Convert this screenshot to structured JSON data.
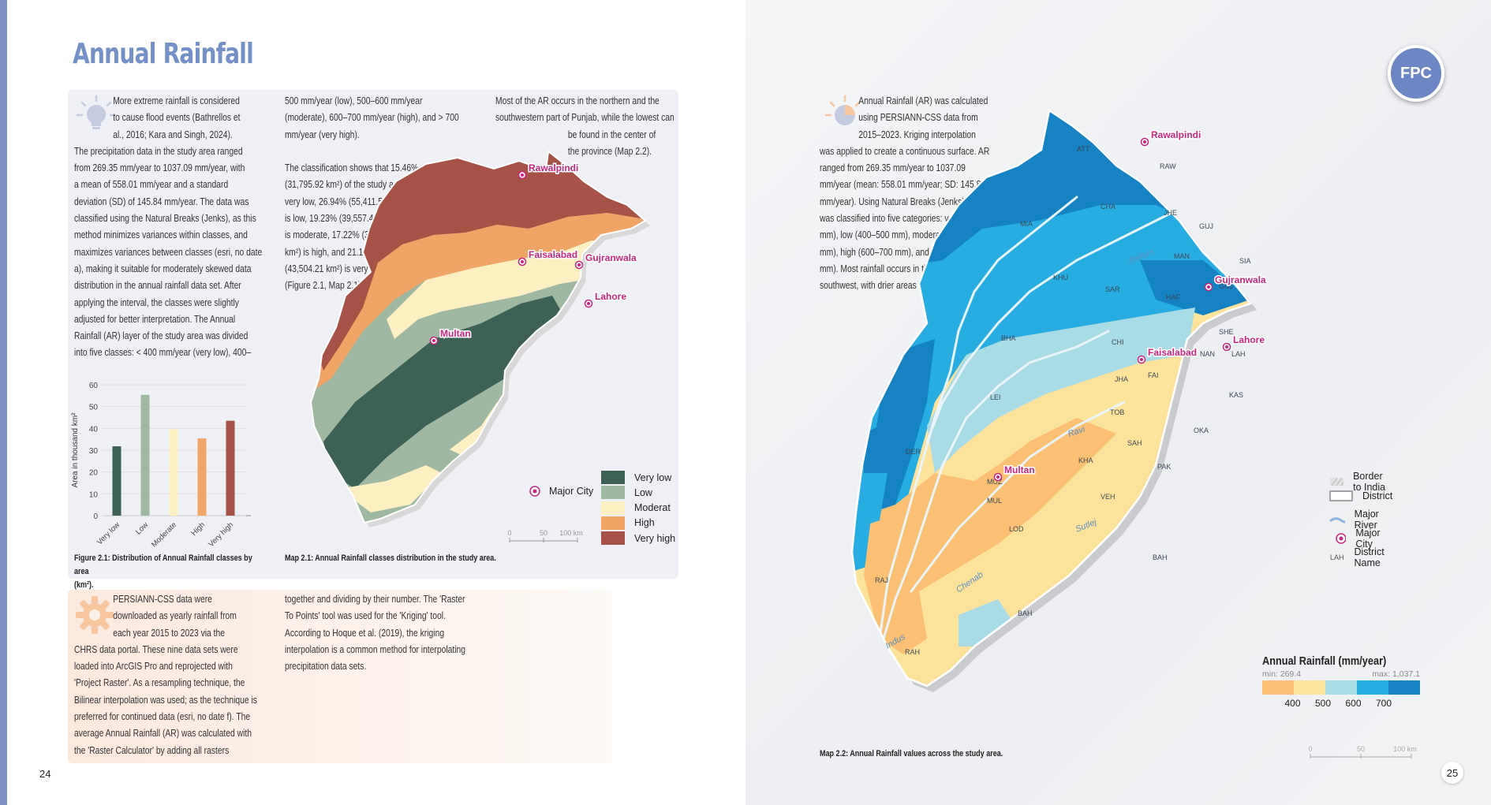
{
  "title": "Annual Rainfall",
  "badge": "FPC",
  "page_left": "24",
  "page_right": "25",
  "left_col1_text": [
    "More extreme rainfall is considered",
    "to cause flood events (Bathrellos et",
    "al., 2016; Kara and Singh, 2024).",
    "The precipitation data in the study area ranged",
    "from 269.35 mm/year to 1037.09 mm/year, with",
    "a mean of 558.01 mm/year and a standard",
    "deviation (SD) of 145.84 mm/year. The data was",
    "classified using the Natural Breaks (Jenks), as this",
    "method minimizes variances within classes, and",
    "maximizes variances between classes (esri, no date",
    "a), making it suitable for moderately skewed data",
    "distribution in the annual rainfall data set. After",
    "applying the interval, the classes were slightly",
    "adjusted for better interpretation. The Annual",
    "Rainfall (AR) layer of the study area was divided",
    "into five classes: < 400 mm/year (very low), 400–"
  ],
  "left_col2_text": [
    "500 mm/year (low), 500–600 mm/year",
    "(moderate), 600–700 mm/year (high), and > 700",
    "mm/year (very high).",
    "",
    "The classification shows that 15.46%",
    "(31,795.92 km²) of the study area falls",
    "very low, 26.94% (55,411.50 km²)",
    "is low, 19.23% (39,557.46 km²)",
    "is moderate, 17.22% (35,427.93",
    "km²) is high, and 21.15%",
    "(43,504.21 km²) is very high",
    "(Figure 2.1, Map 2.1)."
  ],
  "left_col3_text": [
    "Most of the AR occurs in the northern and the",
    "southwestern part of Punjab, while the lowest can",
    "be found in the center of",
    "the province (Map 2.2)."
  ],
  "orange_col1_text": [
    "PERSIANN-CSS data were",
    "downloaded as yearly rainfall from",
    "each year 2015 to 2023 via the",
    "CHRS data portal. These nine data sets were",
    "loaded into ArcGIS Pro and reprojected with",
    "'Project Raster'. As a resampling technique, the",
    "Bilinear interpolation was used; as the technique is",
    "preferred for continued data (esri, no date f). The",
    "average Annual Rainfall (AR) was calculated with",
    "the 'Raster Calculator' by adding all rasters"
  ],
  "orange_col2_text": [
    "together and dividing by their number. The 'Raster",
    "To Points' tool was used for the 'Kriging' tool.",
    "According to Hoque et al. (2019), the kriging",
    "interpolation is a common method for interpolating",
    "precipitation data sets."
  ],
  "right_text": [
    "Annual Rainfall (AR) was calculated",
    "using PERSIANN-CSS data from",
    "2015–2023. Kriging interpolation",
    "was applied to create a continuous surface. AR",
    "ranged from 269.35 mm/year to 1037.09",
    "mm/year (mean: 558.01 mm/year; SD: 145.84",
    "mm/year). Using Natural Breaks (Jenks), the data",
    "was classified into five categories: very low (< 400",
    "mm), low (400–500 mm), moderate (500–600",
    "mm), high (600–700 mm), and very high (> 700",
    "mm). Most rainfall occurs in the north and",
    "southwest, with drier areas in the center of Punjab."
  ],
  "fig1_caption": [
    "Figure 2.1: Distribution of Annual Rainfall classes by area",
    "(km²)."
  ],
  "map1_caption": "Map 2.1: Annual Rainfall classes distribution in the study area.",
  "map2_caption": "Map 2.2: Annual Rainfall values across the study area.",
  "chart_data": {
    "type": "bar",
    "categories": [
      "Very low",
      "Low",
      "Moderate",
      "High",
      "Very high"
    ],
    "values": [
      31.8,
      55.4,
      39.6,
      35.4,
      43.5
    ],
    "colors": [
      "#3d6155",
      "#9fb8a2",
      "#fcefc2",
      "#f0a466",
      "#a75247"
    ],
    "ylabel": "Area in thousand km²",
    "ylim": [
      0,
      60
    ],
    "yticks": [
      0,
      10,
      20,
      30,
      40,
      50,
      60
    ],
    "grid": false
  },
  "map1": {
    "cities": [
      "Rawalpindi",
      "Gujranwala",
      "Faisalabad",
      "Lahore",
      "Multan"
    ],
    "legend_city": "Major City",
    "legend": [
      {
        "label": "Very low",
        "color": "#3d6155"
      },
      {
        "label": "Low",
        "color": "#9fb8a2"
      },
      {
        "label": "Moderat",
        "color": "#fcefc2"
      },
      {
        "label": "High",
        "color": "#f0a466"
      },
      {
        "label": "Very high",
        "color": "#a75247"
      }
    ],
    "scale": [
      "0",
      "50",
      "100 km"
    ]
  },
  "map2": {
    "cities": [
      "Rawalpindi",
      "Gujranwala",
      "Lahore",
      "Faisalabad",
      "Multan"
    ],
    "districts": [
      "ATT",
      "RAW",
      "CHA",
      "JHE",
      "MIA",
      "GUJ",
      "KHU",
      "MAN",
      "SIA",
      "NAR",
      "GUJ",
      "SAR",
      "HAF",
      "BHA",
      "SHE",
      "LAH",
      "CHI",
      "NAN",
      "FAI",
      "JHA",
      "KAS",
      "LEI",
      "TOB",
      "OKA",
      "SAH",
      "DER",
      "KHA",
      "PAK",
      "MUZ",
      "MUL",
      "VEH",
      "LOD",
      "BAH",
      "RAJ",
      "BAH",
      "RAH"
    ],
    "rivers": [
      "Jhelum",
      "Ravi",
      "Sutlej",
      "Chenab",
      "Indus"
    ],
    "legend": [
      "Border to India",
      "District",
      "Major River",
      "Major City",
      "District Name"
    ],
    "legend_district_abbr": "LAH",
    "colorbar_title": "Annual Rainfall (mm/year)",
    "colorbar_min": "min: 269.4",
    "colorbar_max": "max: 1,037.1",
    "colorbar_ticks": [
      "400",
      "500",
      "600",
      "700"
    ],
    "colorbar_colors": [
      "#fbc074",
      "#fde29c",
      "#a9dce6",
      "#27ade2",
      "#1583c3"
    ],
    "scale": [
      "0",
      "50",
      "100 km"
    ]
  }
}
